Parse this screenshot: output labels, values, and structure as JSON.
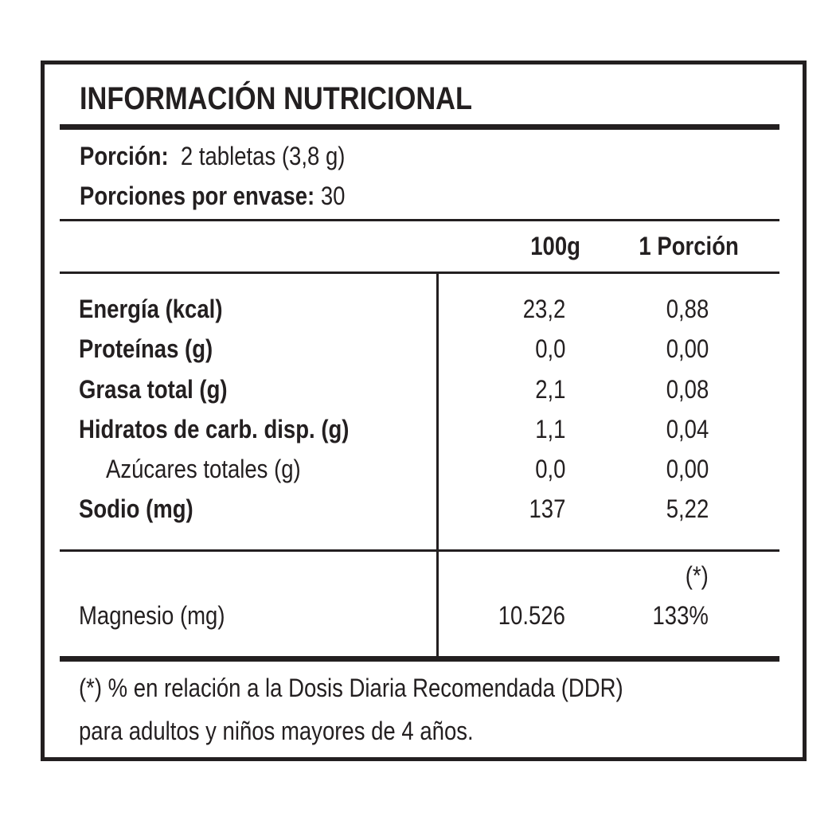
{
  "label": {
    "title": "INFORMACIÓN NUTRICIONAL",
    "serving": {
      "label": "Porción:",
      "value": "2 tabletas (3,8 g)"
    },
    "servings_per_container": {
      "label": "Porciones por envase:",
      "value": "30"
    },
    "columns": {
      "per100": "100g",
      "per_serving": "1 Porción"
    },
    "nutrients": [
      {
        "name": "Energía (kcal)",
        "per100": "23,2",
        "per_serving": "0,88"
      },
      {
        "name": "Proteínas (g)",
        "per100": "0,0",
        "per_serving": "0,00"
      },
      {
        "name": "Grasa total (g)",
        "per100": "2,1",
        "per_serving": "0,08"
      },
      {
        "name": "Hidratos de carb. disp. (g)",
        "per100": "1,1",
        "per_serving": "0,04"
      },
      {
        "name": "Azúcares totales (g)",
        "per100": "0,0",
        "per_serving": "0,00"
      },
      {
        "name": "Sodio (mg)",
        "per100": "137",
        "per_serving": "5,22"
      }
    ],
    "minerals": {
      "marker": "(*)",
      "name": "Magnesio (mg)",
      "per100": "10.526",
      "per_serving": "133%"
    },
    "footnote": {
      "line1": "(*) % en relación a la Dosis Diaria Recomendada (DDR)",
      "line2": "para adultos y niños mayores de 4 años."
    }
  }
}
